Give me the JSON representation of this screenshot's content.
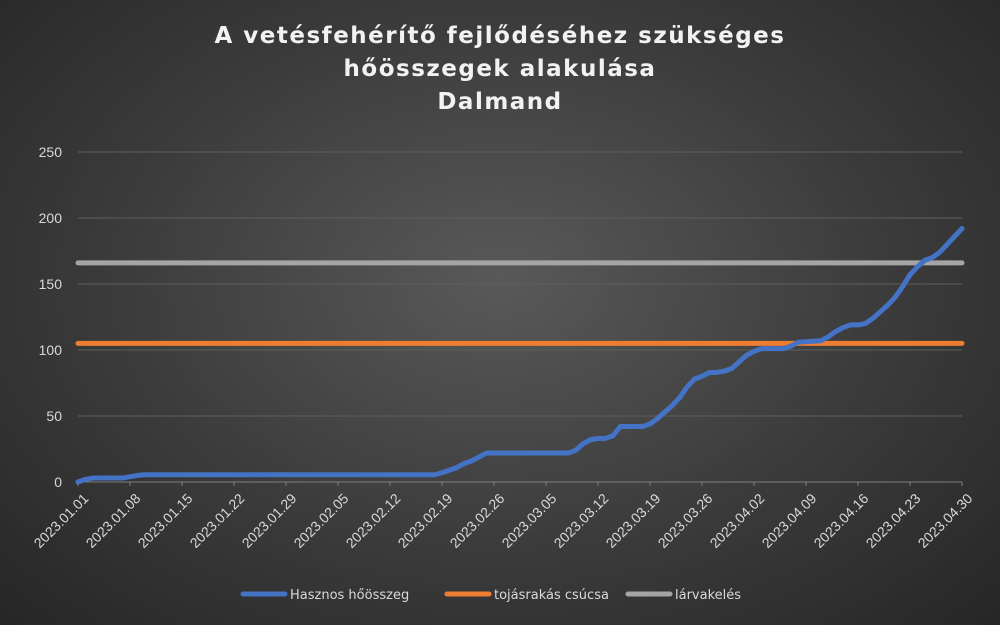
{
  "chart_data": {
    "type": "line",
    "title_lines": [
      "A vetésfehérítő fejlődéséhez szükséges",
      "hőösszegek alakulása",
      "Dalmand"
    ],
    "xlabel": "",
    "ylabel": "",
    "ylim": [
      0,
      250
    ],
    "yticks": [
      0,
      50,
      100,
      150,
      200,
      250
    ],
    "x_range": [
      "2023.01.01",
      "2023.04.30"
    ],
    "xtick_labels": [
      "2023.01.01",
      "2023.01.08",
      "2023.01.15",
      "2023.01.22",
      "2023.01.29",
      "2023.02.05",
      "2023.02.12",
      "2023.02.19",
      "2023.02.26",
      "2023.03.05",
      "2023.03.12",
      "2023.03.19",
      "2023.03.26",
      "2023.04.02",
      "2023.04.09",
      "2023.04.16",
      "2023.04.23",
      "2023.04.30"
    ],
    "grid": true,
    "legend_position": "bottom",
    "series": [
      {
        "name": "Hasznos hőösszeg",
        "color": "#4472c4",
        "points": [
          [
            "2023.01.01",
            0
          ],
          [
            "2023.01.02",
            2
          ],
          [
            "2023.01.03",
            3
          ],
          [
            "2023.01.07",
            3
          ],
          [
            "2023.01.08",
            4
          ],
          [
            "2023.01.09",
            5
          ],
          [
            "2023.01.10",
            5.5
          ],
          [
            "2023.02.18",
            5.5
          ],
          [
            "2023.02.19",
            7
          ],
          [
            "2023.02.20",
            9
          ],
          [
            "2023.02.21",
            11
          ],
          [
            "2023.02.22",
            14
          ],
          [
            "2023.02.23",
            16
          ],
          [
            "2023.02.24",
            19
          ],
          [
            "2023.02.25",
            22
          ],
          [
            "2023.03.08",
            22
          ],
          [
            "2023.03.09",
            24
          ],
          [
            "2023.03.10",
            29
          ],
          [
            "2023.03.11",
            32
          ],
          [
            "2023.03.12",
            33
          ],
          [
            "2023.03.13",
            33
          ],
          [
            "2023.03.14",
            35
          ],
          [
            "2023.03.15",
            42
          ],
          [
            "2023.03.18",
            42
          ],
          [
            "2023.03.19",
            44
          ],
          [
            "2023.03.20",
            48
          ],
          [
            "2023.03.21",
            53
          ],
          [
            "2023.03.22",
            58
          ],
          [
            "2023.03.23",
            64
          ],
          [
            "2023.03.24",
            72
          ],
          [
            "2023.03.25",
            78
          ],
          [
            "2023.03.26",
            80
          ],
          [
            "2023.03.27",
            83
          ],
          [
            "2023.03.28",
            83
          ],
          [
            "2023.03.29",
            84
          ],
          [
            "2023.03.30",
            86
          ],
          [
            "2023.03.31",
            91
          ],
          [
            "2023.04.01",
            96
          ],
          [
            "2023.04.02",
            99
          ],
          [
            "2023.04.03",
            101
          ],
          [
            "2023.04.06",
            101
          ],
          [
            "2023.04.07",
            103
          ],
          [
            "2023.04.08",
            106
          ],
          [
            "2023.04.11",
            107
          ],
          [
            "2023.04.12",
            110
          ],
          [
            "2023.04.13",
            114
          ],
          [
            "2023.04.14",
            117
          ],
          [
            "2023.04.15",
            119
          ],
          [
            "2023.04.16",
            119
          ],
          [
            "2023.04.17",
            120
          ],
          [
            "2023.04.18",
            124
          ],
          [
            "2023.04.19",
            129
          ],
          [
            "2023.04.20",
            134
          ],
          [
            "2023.04.21",
            140
          ],
          [
            "2023.04.22",
            148
          ],
          [
            "2023.04.23",
            157
          ],
          [
            "2023.04.24",
            163
          ],
          [
            "2023.04.25",
            168
          ],
          [
            "2023.04.26",
            170
          ],
          [
            "2023.04.27",
            174
          ],
          [
            "2023.04.28",
            180
          ],
          [
            "2023.04.29",
            186
          ],
          [
            "2023.04.30",
            192
          ]
        ]
      },
      {
        "name": "tojásrakás csúcsa",
        "color": "#ed7d31",
        "points": [
          [
            "2023.01.01",
            105
          ],
          [
            "2023.04.30",
            105
          ]
        ]
      },
      {
        "name": "lárvakelés",
        "color": "#a5a5a5",
        "points": [
          [
            "2023.01.01",
            166
          ],
          [
            "2023.04.30",
            166
          ]
        ]
      }
    ]
  }
}
